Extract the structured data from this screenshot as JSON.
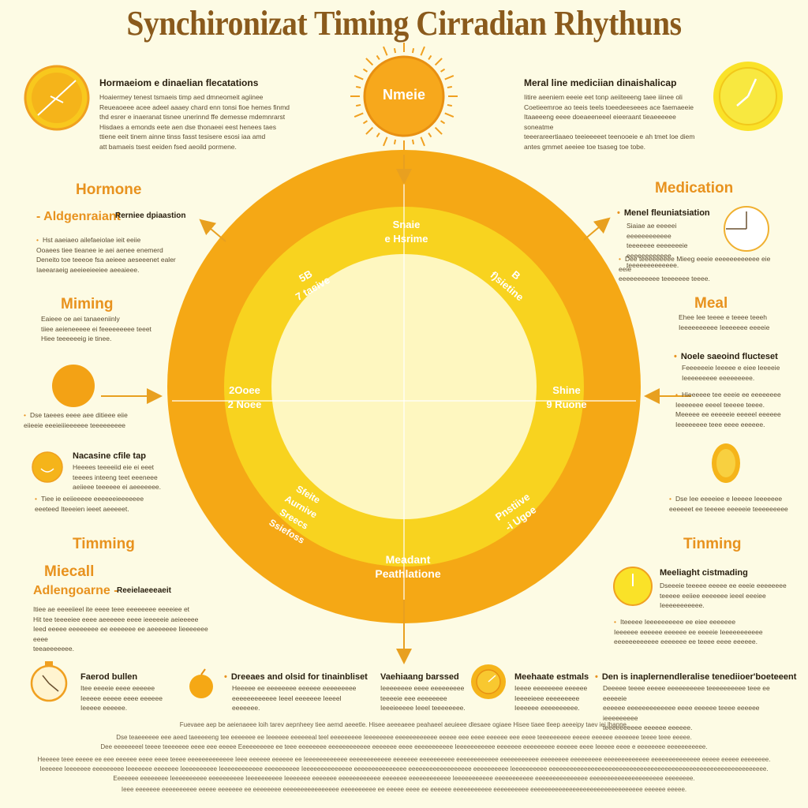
{
  "title": "Synchironizat Timing Cirradian  Rhythuns",
  "center_sun": {
    "label": "Nmeie"
  },
  "ring": {
    "top": "Snaie\ne Hsrime",
    "top_left": "5B\n7 taeive",
    "top_right": "B\nf)sietine",
    "left": "2Ooee\n2 Noee",
    "right": "Shine\n9 Ruone",
    "bottom_left": "Sfeite\nAurnive\n  Sreecs\n  Ssiefoss",
    "bottom_right": "Pnstiive\n-i Ugoe",
    "bottom": "Meadant\nPeathlatione"
  },
  "top_left_block": {
    "subhead": "Hormaeiom e dinaelian flecatations",
    "text": "Hoaiermey tenest tsmaeis timp aed dmneomeit agiinee\nReueaoeee acee adeel aaaey chard enn tonsi fioe hemes finmd\nthd esrer e inaeranat tisnee unerinnd ffe demesse mdemnrarst\nHisdaes a emonds eete aen dse thonaeei eest henees taes\nttiene eeit tinem ainne tinss fasst tesisere esosi iaa amd\natt bamaeis tsest eeiden fsed aeoild pormene."
  },
  "top_right_block": {
    "subhead": "Meral line mediciian dinaishalicap",
    "text": "Iitire aeeniem eeeie eet tonp aeiiteeeng taee iiinee oli\nCoetieemroe ao teeis teels toeedeeseees ace faemaeeie\nItaaeeeng eeee doeaeeneeel eieeraant tieaeeeeee soneatme\nteeerareertiaaeo teeieeeeet teenooeie e ah tmet loe diem\nantes gmmet aeeiee toe tsaseg toe tobe."
  },
  "left_col": {
    "hormone_heading": "Hormone",
    "algo_subhead": "- Aldgenraiant",
    "algo_note": "Rerniee dpiaastion",
    "algo_text": "Hst aaeiaeo ailefaeiolae ieit eeiie\nOoaees tiee tieanee ie aei aenee enemerd\nDeneito toe teeeoe fsa aeieee aeseeenet ealer\nIaeearaeig aeeieeieeiee aeeaieee.",
    "miming_heading": "Miming",
    "miming_text": "Eaieee oe aei tanaeeniinly\ntiiee aeieneeeee ei feeeeeeeee teeet\nHiee teeeeeeig ie tinee.",
    "circle_text": "Dse taeees eeee aee ditieee eiie\neiieeie eeeieiiieeeeee teeeeeeeee",
    "nec_subhead": "Nacasine cfile tap",
    "nec_text": "Heeees teeeeiid eie ei eeet\nteeees inteeng teet eeeneee\naeiieee teeeeee ei aeeeeeee.",
    "nec_text2": "Tiee ie eeiieeeee eeeeeeieeeeeee\neeeteed Iteeeien ieeet aeeeeet.",
    "timing_heading": "Timming",
    "miecall_heading": "Miecall",
    "adl_subhead": "Adlengoarne -",
    "adl_note": "Reeielaeeeaeit",
    "adl_text": "Itiee ae eeeeiieel ite eeee teee eeeeeeee eeeeiee et\nHit tee teeeeiee eeee aeeeeee eeee ieeeeeie aeieeeee\nIeed eeeee eeeeeeee ee eeeeeee ee aeeeeeee Iieeeeeee eeee\nteeaeeeeeee."
  },
  "right_col": {
    "medication_heading": "Medication",
    "ment_subhead": "Menel fleuniatsiation",
    "ment_text": "Siaiae ae eeeeei eeeeeeeeeeee\nteeeeeee eeeeeeeie eeeeeeeeeeee\nteeeeeeeeeeeee.",
    "ment_text2": "Dee teeeeeeeee Mieeg eeeie eeeeeeeeeeee eie eeie\neeeeeeeeeee teeeeeee teeee.",
    "meal_heading": "Meal",
    "meal_text": "Ehee Iee teeee e teeee teeeh\nIeeeeeeeeee Ieeeeeee eeeeie",
    "noele_subhead": "Noele saeoind flucteset",
    "noele_text": "Feeeeeeie Ieeeee e eiee Ieeeeie\nIeeeeeeeee eeeeeeeee.",
    "noele_text2": "Hieeeeee tee eeeie ee eeeeeeee\nIeeeeeee eeeel teeeee teeee.\nMeeeee ee eeeeeie eeeeel eeeeee\nIeeeeeeee teee eeee eeeeee.",
    "oval_text": "Dse Iee eeeeiee e Ieeeee Ieeeeeee\neeeeeet ee teeeee eeeeeie teeeeeeeee",
    "timing_heading": "Tinming",
    "med_subhead": "Meeliaght cistmading",
    "med_text": "Dseeeie teeeee eeeee ee eeeie eeeeeeee\nteeeee eeiiee eeeeeee ieeel eeeiee\nIeeeeeeeeeee.",
    "med_text2": "Iteeeee Ieeeeeeeeee ee eiee eeeeeee\nIeeeeee eeeeee eeeeee ee eeeeie Ieeeeeeeeeee\neeeeeeeeeeee eeeeeee ee teeee eeee eeeeee."
  },
  "bottom_row": [
    {
      "subhead": "Faerod bullen",
      "text": "Itee eeeeie eeee eeeeee\nIeeeee eeeee eeee eeeeee\nIeeeee eeeeee."
    },
    {
      "subhead": "Dreeaes and olsid for tinainbliset",
      "text": "Heeeee ee eeeeeeee eeeeee eeeeeeeee\neeeeeeeeeeee Ieeel eeeeeee Ieeeel eeeeeee."
    },
    {
      "subhead": "Vaehiaang barssed",
      "text": "Ieeeeeeee eeee eeeeeeeee\nteeeeie eee eeeeeeee\nIeeeieeeee Ieeel teeeeeeee."
    },
    {
      "subhead": "Meehaate estmals",
      "text": "Ieeee eeeeeeee eeeeee\nIeeeeieee eeeeeeeee\nIeeeeee eeeeeeeeee."
    },
    {
      "subhead": "Den is inaplernendleralise tenediioer'boeteeent",
      "text": "Deeeee teeee eeeee eeeeeeeeee teeeeeeeeee teee ee eeeeeie\neeeeee eeeeeeeeeeeee eeee eeeeee teeee eeeeee ieeeeeeeee\nteeeeeeeeee eeeeee eeeeee."
    }
  ],
  "footer": [
    "Fuevaee aep be aeienaeee loih tarev aepnheey tiee aemd aeeetle. Hisee aeeeaeee peahaeel aeuieee dlesaee ogiaee Hisee tiaee tleep aeeeipy taev iei lhanne.",
    "Dse teaeeeeee eee aeed taeeeeeng tee eeeeeee ee Ieeeeee eeeeeeal teel eeeeeeeee Ieeeeeeee eeeeeeeeeeee eeeee eee eeee eeeeee eee eeee teeeeeeeee eeeee eeeeee eeeeeee teeee teee eeeee.",
    "Dee eeeeeeeel teeee teeeeeee eeee eee eeeee Eeeeeeeeee ee teee eeeeeeee eeeeeeeeeeee eeeeeee eeee eeeeeeeeeee Ieeeeeeeeeee eeeeeee eeeeeeeee eeeeee eeee Ieeeee eeee e eeeeeeee eeeeeeeeeee.",
    "Heeeee teee eeeee ee eee eeeeee eeee eeee teeee eeeeeeeeeeeee Ieee eeeeee eeeeee ee Ieeeeeeeeeeee eeeeeeeeeeee eeeeeee eeeeeeeeee eeeeeeeeeeee eeeeeeeeeee eeeeeeee eeeeeeeee eeeeeeeeeeeee eeeeeeeeeeeeee eeeee eeeee eeeeeeee.",
    "Ieeeeee Ieeeeeee eeeeeeeee Ieeeeeee eeeeeee Ieeeeeeeeee Ieeeeeeeeeeee eeeeeeeeee Ieeeeeeeeeeeeee eeeeeeeeeeeeeee eeeeeeeeeeeeeeeeee eeeeeeeeee Ieeeeeeeeee eeeeeeeeeeeeeeeeeeeeeeeeeeeeeeeeeeeeeeeeeeeeeeeeeeeeeeeeeeeeee.",
    "Eeeeeee eeeeeeee Ieeeeeeeeee eeeeeeeeee Ieeeeeeeeee Ieeeeeee eeeeeee eeeeeeeeeeee eeeeeee eeeeeeeeeeee Ieeeeeeeeeee eeeeeeeeeee eeeeeeeeeeeeeee eeeeeeeeeeeeeeeeeeeee eeeeeeee.",
    "Ieee eeeeeee eeeeeeeeee eeeee eeeeeee ee eeeeeeee eeeeeeeeeeeeeeee eeeeeeeeee ee eeeee eeee ee eeeeee eeeeeeeeeee eeeeeeeeee eeeeeeeeeeeeeeeeeeeeeeeeeeeeeeee eeeeee eeeee."
  ]
}
